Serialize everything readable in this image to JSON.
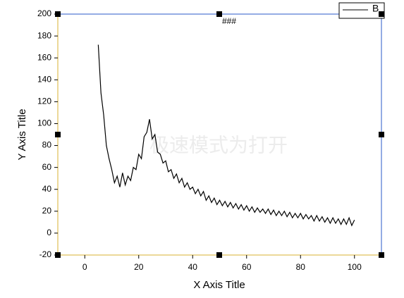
{
  "chart_data": {
    "type": "line",
    "title": "###",
    "x_label": "X Axis Title",
    "y_label": "Y Axis Title",
    "watermark": "极速模式为打开",
    "x": [
      5,
      6,
      7,
      8,
      9,
      10,
      11,
      12,
      13,
      14,
      15,
      16,
      17,
      18,
      19,
      20,
      21,
      22,
      23,
      24,
      25,
      26,
      27,
      28,
      29,
      30,
      31,
      32,
      33,
      34,
      35,
      36,
      37,
      38,
      39,
      40,
      41,
      42,
      43,
      44,
      45,
      46,
      47,
      48,
      49,
      50,
      51,
      52,
      53,
      54,
      55,
      56,
      57,
      58,
      59,
      60,
      61,
      62,
      63,
      64,
      65,
      66,
      67,
      68,
      69,
      70,
      71,
      72,
      73,
      74,
      75,
      76,
      77,
      78,
      79,
      80,
      81,
      82,
      83,
      84,
      85,
      86,
      87,
      88,
      89,
      90,
      91,
      92,
      93,
      94,
      95,
      96,
      97,
      98,
      99,
      100
    ],
    "series": [
      {
        "name": "B",
        "color": "#000000",
        "values": [
          172,
          128,
          108,
          80,
          68,
          58,
          46,
          52,
          42,
          55,
          44,
          52,
          48,
          60,
          58,
          72,
          68,
          88,
          92,
          104,
          86,
          90,
          74,
          72,
          64,
          66,
          56,
          58,
          50,
          54,
          46,
          50,
          42,
          46,
          40,
          42,
          36,
          40,
          34,
          38,
          30,
          34,
          28,
          32,
          26,
          30,
          25,
          29,
          24,
          28,
          23,
          27,
          22,
          26,
          21,
          25,
          20,
          24,
          19,
          23,
          19,
          22,
          18,
          22,
          17,
          21,
          16,
          20,
          16,
          20,
          15,
          19,
          14,
          18,
          14,
          18,
          13,
          17,
          13,
          16,
          11,
          16,
          11,
          15,
          10,
          14,
          9,
          14,
          9,
          13,
          8,
          13,
          8,
          14,
          7,
          12
        ]
      }
    ],
    "xlim": [
      -10,
      110
    ],
    "ylim": [
      -20,
      200
    ],
    "xticks": [
      0,
      20,
      40,
      60,
      80,
      100
    ],
    "yticks": [
      -20,
      0,
      20,
      40,
      60,
      80,
      100,
      120,
      140,
      160,
      180,
      200
    ],
    "legend": "top-right"
  }
}
